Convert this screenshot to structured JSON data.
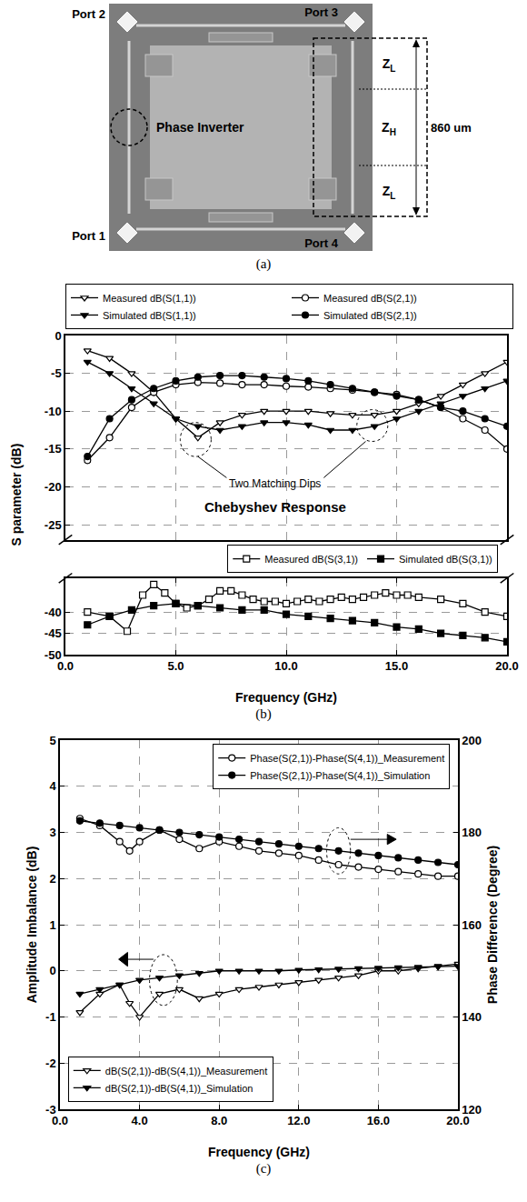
{
  "diagram": {
    "ports": [
      "Port 2",
      "Port 3",
      "Port 1",
      "Port 4"
    ],
    "phase_inverter": "Phase Inverter",
    "segments": [
      {
        "symbol": "Z",
        "subscript": "L"
      },
      {
        "symbol": "Z",
        "subscript": "H"
      },
      {
        "symbol": "Z",
        "subscript": "L"
      }
    ],
    "dimension": "860 um",
    "caption": "(a)"
  },
  "chart_data": [
    {
      "type": "line",
      "caption": "(b)",
      "x_label": "Frequency (GHz)",
      "y_label": "S parameter (dB)",
      "annotations": [
        "Two Matching Dips",
        "Chebyshev Response"
      ],
      "xlim": [
        0,
        20
      ],
      "xticks": [
        {
          "value": 0,
          "label": "0.0"
        },
        {
          "value": 5,
          "label": "5.0"
        },
        {
          "value": 10,
          "label": "10.0"
        },
        {
          "value": 15,
          "label": "15.0"
        },
        {
          "value": 20,
          "label": "20.0"
        }
      ],
      "ylim": [
        -27,
        0
      ],
      "yticks": [
        0,
        -5,
        -10,
        -15,
        -20,
        -25
      ],
      "y2lim": [
        -50,
        -32
      ],
      "y2ticks": [
        -40,
        -45,
        -50
      ],
      "grid": true,
      "legend": "top",
      "series": [
        {
          "name": "Measured dB(S(1,1))",
          "color": "#000000",
          "marker": "triangle-down-open",
          "line_style": "solid",
          "x": [
            1,
            2,
            3,
            4,
            5,
            6,
            7,
            8,
            9,
            10,
            11,
            12,
            13,
            14,
            15,
            16,
            17,
            18,
            19,
            20
          ],
          "values": [
            -2,
            -3,
            -5,
            -7.5,
            -11,
            -13.5,
            -11.5,
            -10.5,
            -10,
            -10,
            -10,
            -10.3,
            -10.5,
            -10.5,
            -10,
            -9,
            -8,
            -6.5,
            -5,
            -3.5
          ]
        },
        {
          "name": "Measured dB(S(2,1))",
          "color": "#000000",
          "marker": "circle-open",
          "line_style": "solid",
          "x": [
            1,
            2,
            3,
            4,
            5,
            6,
            7,
            8,
            9,
            10,
            11,
            12,
            13,
            14,
            15,
            16,
            17,
            18,
            19,
            20
          ],
          "values": [
            -16.5,
            -13.5,
            -9.5,
            -7.5,
            -6.5,
            -6.2,
            -6.3,
            -6.5,
            -6.5,
            -6.7,
            -6.8,
            -7,
            -7.2,
            -7.5,
            -7.8,
            -8.5,
            -9.5,
            -11,
            -12.5,
            -15
          ]
        },
        {
          "name": "Simulated dB(S(1,1))",
          "color": "#000000",
          "marker": "triangle-down",
          "line_style": "solid",
          "x": [
            1,
            2,
            3,
            4,
            5,
            6,
            7,
            8,
            9,
            10,
            11,
            12,
            13,
            14,
            15,
            16,
            17,
            18,
            19,
            20
          ],
          "values": [
            -3.5,
            -5,
            -7,
            -9,
            -11,
            -12,
            -12.5,
            -12,
            -11.5,
            -11.5,
            -11.8,
            -12.5,
            -12.5,
            -12,
            -11,
            -10,
            -9,
            -8,
            -7,
            -6
          ]
        },
        {
          "name": "Simulated dB(S(2,1))",
          "color": "#000000",
          "marker": "circle",
          "line_style": "solid",
          "x": [
            1,
            2,
            3,
            4,
            5,
            6,
            7,
            8,
            9,
            10,
            11,
            12,
            13,
            14,
            15,
            16,
            17,
            18,
            19,
            20
          ],
          "values": [
            -16,
            -11,
            -8.5,
            -7,
            -6,
            -5.5,
            -5.3,
            -5.3,
            -5.5,
            -5.7,
            -6,
            -6.5,
            -7,
            -7.5,
            -8,
            -8.5,
            -9.5,
            -10,
            -11,
            -12
          ]
        },
        {
          "name": "Measured dB(S(3,1))",
          "color": "#000000",
          "marker": "square-open",
          "line_style": "solid",
          "axis": "y2",
          "x": [
            1,
            2,
            2.8,
            3.5,
            4,
            4.5,
            5,
            5.5,
            6,
            6.5,
            7,
            7.5,
            8,
            8.5,
            9,
            9.5,
            10,
            10.5,
            11,
            11.5,
            12,
            12.5,
            13,
            13.5,
            14,
            14.5,
            15,
            15.5,
            16,
            17,
            18,
            19,
            20
          ],
          "values": [
            -40,
            -41,
            -44.5,
            -36,
            -33.5,
            -35.5,
            -38,
            -39,
            -38.5,
            -37,
            -35,
            -35,
            -36,
            -37,
            -37.5,
            -37.5,
            -38,
            -37.5,
            -37,
            -37.5,
            -37,
            -36.5,
            -37,
            -36.5,
            -36,
            -35.5,
            -36,
            -36,
            -36.5,
            -37,
            -38,
            -40,
            -41
          ]
        },
        {
          "name": "Simulated dB(S(3,1))",
          "color": "#000000",
          "marker": "square",
          "line_style": "solid",
          "axis": "y2",
          "x": [
            1,
            2,
            3,
            4,
            5,
            6,
            7,
            8,
            9,
            10,
            11,
            12,
            13,
            14,
            15,
            16,
            17,
            18,
            19,
            20
          ],
          "values": [
            -43,
            -41,
            -39.5,
            -38.5,
            -38,
            -38.5,
            -39,
            -39.5,
            -39.5,
            -40.5,
            -41,
            -41.5,
            -42,
            -42.5,
            -43.5,
            -44,
            -45,
            -45.5,
            -46,
            -47
          ]
        }
      ]
    },
    {
      "type": "line",
      "caption": "(c)",
      "x_label": "Frequency (GHz)",
      "y_label": "Amplitude Imbalance (dB)",
      "y2_label": "Phase Difference (Degree)",
      "xlim": [
        0,
        20
      ],
      "xticks": [
        {
          "value": 0,
          "label": "0.0"
        },
        {
          "value": 4,
          "label": "4.0"
        },
        {
          "value": 8,
          "label": "8.0"
        },
        {
          "value": 12,
          "label": "12.0"
        },
        {
          "value": 16,
          "label": "16.0"
        },
        {
          "value": 20,
          "label": "20.0"
        }
      ],
      "ylim": [
        -3,
        5
      ],
      "yticks": [
        -3,
        -2,
        -1,
        0,
        1,
        2,
        3,
        4,
        5
      ],
      "y2lim": [
        120,
        200
      ],
      "y2ticks": [
        120,
        140,
        160,
        180,
        200
      ],
      "grid": true,
      "legend": "bottom",
      "series": [
        {
          "name": "Phase(S(2,1))-Phase(S(4,1))_Measurement",
          "color": "#000000",
          "marker": "circle-open",
          "line_style": "solid",
          "axis": "y2",
          "x": [
            1,
            2,
            3,
            3.5,
            4,
            5,
            6,
            7,
            8,
            9,
            10,
            11,
            12,
            13,
            14,
            15,
            16,
            17,
            18,
            19,
            20
          ],
          "values": [
            183,
            181.5,
            178,
            176,
            178,
            180.5,
            178.5,
            176.5,
            178,
            177,
            176,
            175.5,
            175,
            174,
            173,
            172.5,
            172,
            171.5,
            171,
            170.5,
            170.5
          ]
        },
        {
          "name": "Phase(S(2,1))-Phase(S(4,1))_Simulation",
          "color": "#000000",
          "marker": "circle",
          "line_style": "solid",
          "axis": "y2",
          "x": [
            1,
            2,
            3,
            4,
            5,
            6,
            7,
            8,
            9,
            10,
            11,
            12,
            13,
            14,
            15,
            16,
            17,
            18,
            19,
            20
          ],
          "values": [
            182.5,
            182,
            181.5,
            181,
            180.5,
            180,
            179.5,
            179,
            178.5,
            178,
            177.5,
            177,
            176.5,
            176,
            175.5,
            175,
            174.5,
            174,
            173.5,
            173
          ]
        },
        {
          "name": "dB(S(2,1))-dB(S(4,1))_Measurement",
          "color": "#000000",
          "marker": "triangle-down-open",
          "line_style": "solid",
          "x": [
            1,
            2,
            3,
            3.5,
            4,
            5,
            6,
            7,
            8,
            9,
            10,
            11,
            12,
            13,
            14,
            15,
            16,
            17,
            18,
            19,
            20
          ],
          "values": [
            -0.9,
            -0.5,
            -0.3,
            -0.7,
            -1,
            -0.5,
            -0.4,
            -0.6,
            -0.5,
            -0.4,
            -0.35,
            -0.3,
            -0.25,
            -0.2,
            -0.15,
            -0.1,
            0,
            0,
            0.05,
            0.1,
            0.15
          ]
        },
        {
          "name": "dB(S(2,1))-dB(S(4,1))_Simulation",
          "color": "#000000",
          "marker": "triangle-down",
          "line_style": "solid",
          "x": [
            1,
            2,
            3,
            4,
            5,
            6,
            7,
            8,
            9,
            10,
            11,
            12,
            13,
            14,
            15,
            16,
            17,
            18,
            19,
            20
          ],
          "values": [
            -0.5,
            -0.4,
            -0.3,
            -0.2,
            -0.15,
            -0.1,
            -0.05,
            0,
            0,
            0,
            0,
            0.02,
            0.03,
            0.04,
            0.05,
            0.06,
            0.07,
            0.08,
            0.09,
            0.1
          ]
        }
      ]
    }
  ]
}
